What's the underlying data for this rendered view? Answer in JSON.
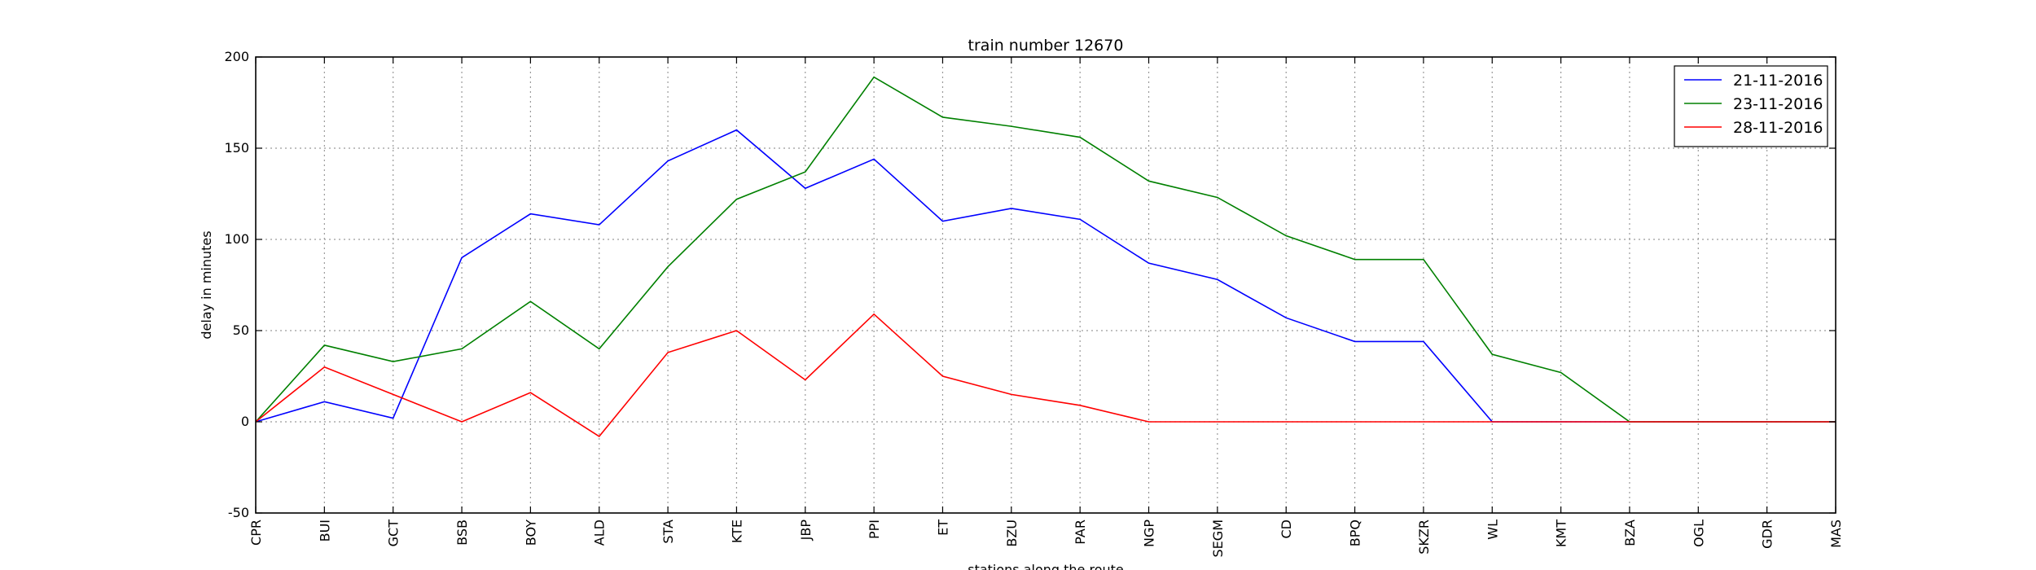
{
  "chart_data": {
    "type": "line",
    "title": "train number 12670",
    "xlabel": "stations along the route",
    "ylabel": "delay in minutes",
    "categories": [
      "CPR",
      "BUI",
      "GCT",
      "BSB",
      "BOY",
      "ALD",
      "STA",
      "KTE",
      "JBP",
      "PPI",
      "ET",
      "BZU",
      "PAR",
      "NGP",
      "SEGM",
      "CD",
      "BPQ",
      "SKZR",
      "WL",
      "KMT",
      "BZA",
      "OGL",
      "GDR",
      "MAS"
    ],
    "ylim": [
      -50,
      200
    ],
    "yticks": [
      -50,
      0,
      50,
      100,
      150,
      200
    ],
    "grid": true,
    "legend_position": "top-right",
    "series": [
      {
        "name": "21-11-2016",
        "color": "#0000ff",
        "values": [
          0,
          11,
          2,
          90,
          114,
          108,
          143,
          160,
          128,
          144,
          110,
          117,
          111,
          87,
          78,
          57,
          44,
          44,
          0,
          0,
          0,
          0,
          0,
          0
        ]
      },
      {
        "name": "23-11-2016",
        "color": "#008000",
        "values": [
          0,
          42,
          33,
          40,
          66,
          40,
          85,
          122,
          137,
          189,
          167,
          162,
          156,
          132,
          123,
          102,
          89,
          89,
          37,
          27,
          0,
          0,
          0,
          0
        ]
      },
      {
        "name": "28-11-2016",
        "color": "#ff0000",
        "values": [
          0,
          30,
          15,
          0,
          16,
          -8,
          38,
          50,
          23,
          59,
          25,
          15,
          9,
          0,
          0,
          0,
          0,
          0,
          0,
          0,
          0,
          0,
          0,
          0
        ]
      }
    ]
  }
}
